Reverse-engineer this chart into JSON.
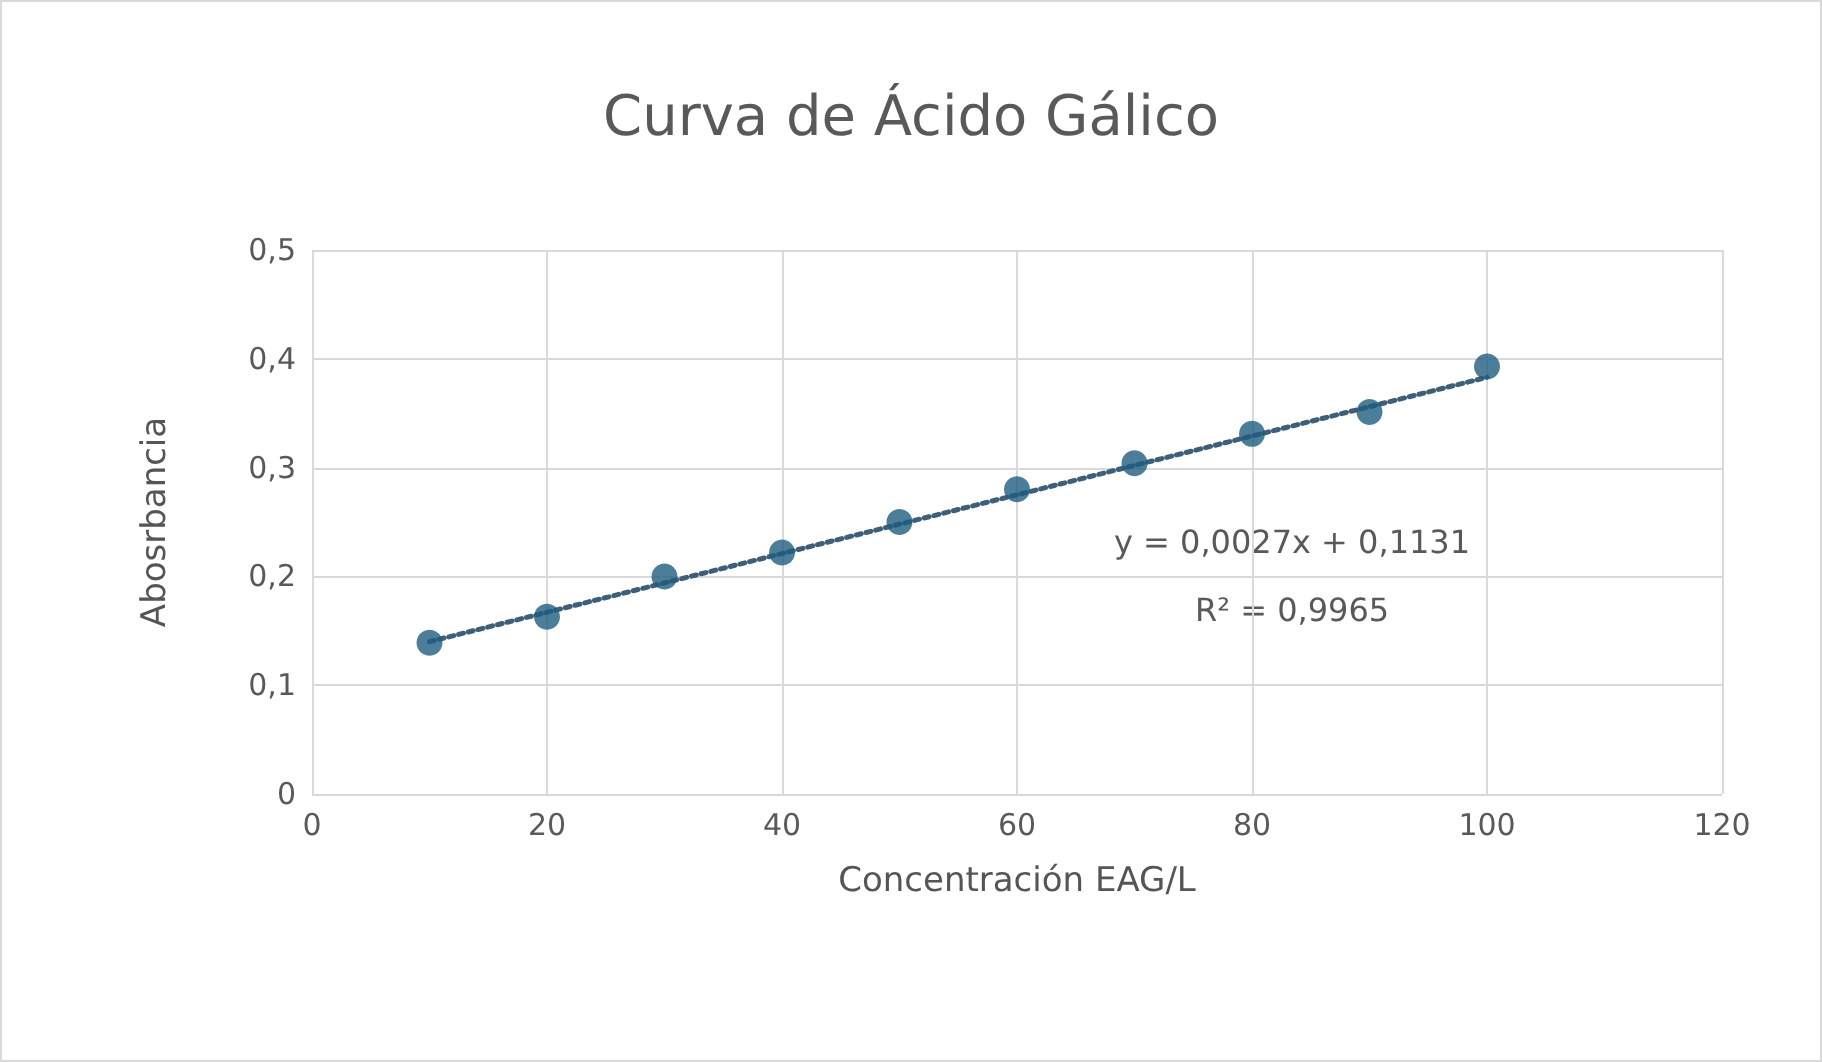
{
  "chart_data": {
    "type": "scatter",
    "title": "Curva de Ácido Gálico",
    "xlabel": "Concentración EAG/L",
    "ylabel": "Abosrbancia",
    "x": [
      10,
      20,
      30,
      40,
      50,
      60,
      70,
      80,
      90,
      100
    ],
    "series": [
      {
        "color": "#1f5c7f",
        "marker": "circle",
        "values": [
          0.139,
          0.163,
          0.2,
          0.222,
          0.25,
          0.28,
          0.304,
          0.331,
          0.351,
          0.393
        ]
      },
      {
        "type": "line",
        "color": "#3f5f78",
        "marker": "none",
        "line_style": "dotted",
        "x": [
          10,
          100
        ],
        "values": [
          0.14,
          0.383
        ]
      }
    ],
    "xlim": [
      0,
      120
    ],
    "xticks": [
      0,
      20,
      40,
      60,
      80,
      100,
      120
    ],
    "ylim": [
      0,
      0.5
    ],
    "yticks": [
      {
        "value": 0,
        "label": "0"
      },
      {
        "value": 0.1,
        "label": "0,1"
      },
      {
        "value": 0.2,
        "label": "0,2"
      },
      {
        "value": 0.3,
        "label": "0,3"
      },
      {
        "value": 0.4,
        "label": "0,4"
      },
      {
        "value": 0.5,
        "label": "0,5"
      }
    ],
    "grid": true,
    "annotations": [
      "y = 0,0027x + 0,1131",
      "R² = 0,9965"
    ]
  }
}
